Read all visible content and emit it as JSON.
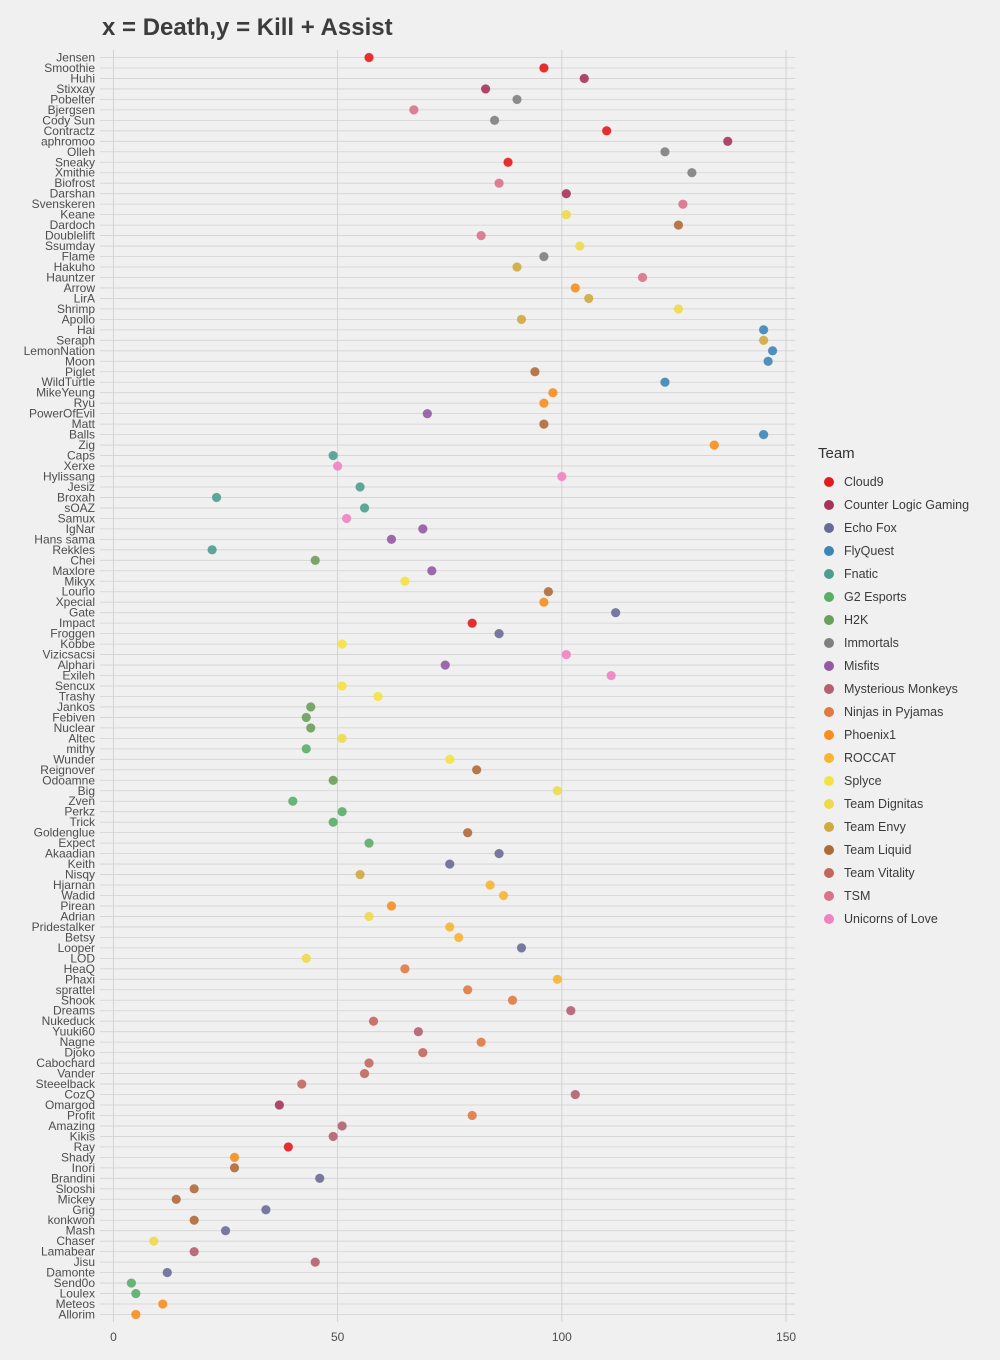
{
  "chart_data": {
    "type": "scatter",
    "title": "x = Death,y = Kill + Assist",
    "xlabel": "",
    "ylabel": "",
    "xlim": [
      -3,
      152
    ],
    "xticks": [
      0,
      50,
      100,
      150
    ],
    "grid": true,
    "legend_title": "Team",
    "legend_position": "right",
    "teams": [
      {
        "name": "Cloud9",
        "color": "#e41a1c"
      },
      {
        "name": "Counter Logic Gaming",
        "color": "#a6345a"
      },
      {
        "name": "Echo Fox",
        "color": "#6a6a98"
      },
      {
        "name": "FlyQuest",
        "color": "#3d85b8"
      },
      {
        "name": "Fnatic",
        "color": "#4c9e8e"
      },
      {
        "name": "G2 Esports",
        "color": "#5aad68"
      },
      {
        "name": "H2K",
        "color": "#6a9e5a"
      },
      {
        "name": "Immortals",
        "color": "#808080"
      },
      {
        "name": "Misfits",
        "color": "#9359a4"
      },
      {
        "name": "Mysterious Monkeys",
        "color": "#b46070"
      },
      {
        "name": "Ninjas in Pyjamas",
        "color": "#e07a42"
      },
      {
        "name": "Phoenix1",
        "color": "#f68e1e"
      },
      {
        "name": "ROCCAT",
        "color": "#f7b531"
      },
      {
        "name": "Splyce",
        "color": "#f5e140"
      },
      {
        "name": "Team Dignitas",
        "color": "#eed94a"
      },
      {
        "name": "Team Envy",
        "color": "#cfaa40"
      },
      {
        "name": "Team Liquid",
        "color": "#b06a38"
      },
      {
        "name": "Team Vitality",
        "color": "#c1685e"
      },
      {
        "name": "TSM",
        "color": "#d9728a"
      },
      {
        "name": "Unicorns of Love",
        "color": "#f082c2"
      }
    ],
    "points": [
      {
        "player": "Jensen",
        "x": 57,
        "team": "Cloud9"
      },
      {
        "player": "Smoothie",
        "x": 96,
        "team": "Cloud9"
      },
      {
        "player": "Huhi",
        "x": 105,
        "team": "Counter Logic Gaming"
      },
      {
        "player": "Stixxay",
        "x": 83,
        "team": "Counter Logic Gaming"
      },
      {
        "player": "Pobelter",
        "x": 90,
        "team": "Immortals"
      },
      {
        "player": "Bjergsen",
        "x": 67,
        "team": "TSM"
      },
      {
        "player": "Cody Sun",
        "x": 85,
        "team": "Immortals"
      },
      {
        "player": "Contractz",
        "x": 110,
        "team": "Cloud9"
      },
      {
        "player": "aphromoo",
        "x": 137,
        "team": "Counter Logic Gaming"
      },
      {
        "player": "Olleh",
        "x": 123,
        "team": "Immortals"
      },
      {
        "player": "Sneaky",
        "x": 88,
        "team": "Cloud9"
      },
      {
        "player": "Xmithie",
        "x": 129,
        "team": "Immortals"
      },
      {
        "player": "Biofrost",
        "x": 86,
        "team": "TSM"
      },
      {
        "player": "Darshan",
        "x": 101,
        "team": "Counter Logic Gaming"
      },
      {
        "player": "Svenskeren",
        "x": 127,
        "team": "TSM"
      },
      {
        "player": "Keane",
        "x": 101,
        "team": "Team Dignitas"
      },
      {
        "player": "Dardoch",
        "x": 126,
        "team": "Team Liquid"
      },
      {
        "player": "Doublelift",
        "x": 82,
        "team": "TSM"
      },
      {
        "player": "Ssumday",
        "x": 104,
        "team": "Team Dignitas"
      },
      {
        "player": "Flame",
        "x": 96,
        "team": "Immortals"
      },
      {
        "player": "Hakuho",
        "x": 90,
        "team": "Team Envy"
      },
      {
        "player": "Hauntzer",
        "x": 118,
        "team": "TSM"
      },
      {
        "player": "Arrow",
        "x": 103,
        "team": "Phoenix1"
      },
      {
        "player": "LirA",
        "x": 106,
        "team": "Team Envy"
      },
      {
        "player": "Shrimp",
        "x": 126,
        "team": "Team Dignitas"
      },
      {
        "player": "Apollo",
        "x": 91,
        "team": "Team Envy"
      },
      {
        "player": "Hai",
        "x": 145,
        "team": "FlyQuest"
      },
      {
        "player": "Seraph",
        "x": 145,
        "team": "Team Envy"
      },
      {
        "player": "LemonNation",
        "x": 147,
        "team": "FlyQuest"
      },
      {
        "player": "Moon",
        "x": 146,
        "team": "FlyQuest"
      },
      {
        "player": "Piglet",
        "x": 94,
        "team": "Team Liquid"
      },
      {
        "player": "WildTurtle",
        "x": 123,
        "team": "FlyQuest"
      },
      {
        "player": "MikeYeung",
        "x": 98,
        "team": "Phoenix1"
      },
      {
        "player": "Ryu",
        "x": 96,
        "team": "Phoenix1"
      },
      {
        "player": "PowerOfEvil",
        "x": 70,
        "team": "Misfits"
      },
      {
        "player": "Matt",
        "x": 96,
        "team": "Team Liquid"
      },
      {
        "player": "Balls",
        "x": 145,
        "team": "FlyQuest"
      },
      {
        "player": "Zig",
        "x": 134,
        "team": "Phoenix1"
      },
      {
        "player": "Caps",
        "x": 49,
        "team": "Fnatic"
      },
      {
        "player": "Xerxe",
        "x": 50,
        "team": "Unicorns of Love"
      },
      {
        "player": "Hylissang",
        "x": 100,
        "team": "Unicorns of Love"
      },
      {
        "player": "Jesiz",
        "x": 55,
        "team": "Fnatic"
      },
      {
        "player": "Broxah",
        "x": 23,
        "team": "Fnatic"
      },
      {
        "player": "sOAZ",
        "x": 56,
        "team": "Fnatic"
      },
      {
        "player": "Samux",
        "x": 52,
        "team": "Unicorns of Love"
      },
      {
        "player": "IgNar",
        "x": 69,
        "team": "Misfits"
      },
      {
        "player": "Hans sama",
        "x": 62,
        "team": "Misfits"
      },
      {
        "player": "Rekkles",
        "x": 22,
        "team": "Fnatic"
      },
      {
        "player": "Chei",
        "x": 45,
        "team": "H2K"
      },
      {
        "player": "Maxlore",
        "x": 71,
        "team": "Misfits"
      },
      {
        "player": "Mikyx",
        "x": 65,
        "team": "Splyce"
      },
      {
        "player": "Lourlo",
        "x": 97,
        "team": "Team Liquid"
      },
      {
        "player": "Xpecial",
        "x": 96,
        "team": "Phoenix1"
      },
      {
        "player": "Gate",
        "x": 112,
        "team": "Echo Fox"
      },
      {
        "player": "Impact",
        "x": 80,
        "team": "Cloud9"
      },
      {
        "player": "Froggen",
        "x": 86,
        "team": "Echo Fox"
      },
      {
        "player": "Kobbe",
        "x": 51,
        "team": "Splyce"
      },
      {
        "player": "Vizicsacsi",
        "x": 101,
        "team": "Unicorns of Love"
      },
      {
        "player": "Alphari",
        "x": 74,
        "team": "Misfits"
      },
      {
        "player": "Exileh",
        "x": 111,
        "team": "Unicorns of Love"
      },
      {
        "player": "Sencux",
        "x": 51,
        "team": "Splyce"
      },
      {
        "player": "Trashy",
        "x": 59,
        "team": "Splyce"
      },
      {
        "player": "Jankos",
        "x": 44,
        "team": "H2K"
      },
      {
        "player": "Febiven",
        "x": 43,
        "team": "H2K"
      },
      {
        "player": "Nuclear",
        "x": 44,
        "team": "H2K"
      },
      {
        "player": "Altec",
        "x": 51,
        "team": "Team Dignitas"
      },
      {
        "player": "mithy",
        "x": 43,
        "team": "G2 Esports"
      },
      {
        "player": "Wunder",
        "x": 75,
        "team": "Splyce"
      },
      {
        "player": "Reignover",
        "x": 81,
        "team": "Team Liquid"
      },
      {
        "player": "Odoamne",
        "x": 49,
        "team": "H2K"
      },
      {
        "player": "Big",
        "x": 99,
        "team": "Team Dignitas"
      },
      {
        "player": "Zven",
        "x": 40,
        "team": "G2 Esports"
      },
      {
        "player": "Perkz",
        "x": 51,
        "team": "G2 Esports"
      },
      {
        "player": "Trick",
        "x": 49,
        "team": "G2 Esports"
      },
      {
        "player": "Goldenglue",
        "x": 79,
        "team": "Team Liquid"
      },
      {
        "player": "Expect",
        "x": 57,
        "team": "G2 Esports"
      },
      {
        "player": "Akaadian",
        "x": 86,
        "team": "Echo Fox"
      },
      {
        "player": "Keith",
        "x": 75,
        "team": "Echo Fox"
      },
      {
        "player": "Nisqy",
        "x": 55,
        "team": "Team Envy"
      },
      {
        "player": "Hjarnan",
        "x": 84,
        "team": "ROCCAT"
      },
      {
        "player": "Wadid",
        "x": 87,
        "team": "ROCCAT"
      },
      {
        "player": "Pirean",
        "x": 62,
        "team": "Phoenix1"
      },
      {
        "player": "Adrian",
        "x": 57,
        "team": "Team Dignitas"
      },
      {
        "player": "Pridestalker",
        "x": 75,
        "team": "ROCCAT"
      },
      {
        "player": "Betsy",
        "x": 77,
        "team": "ROCCAT"
      },
      {
        "player": "Looper",
        "x": 91,
        "team": "Echo Fox"
      },
      {
        "player": "LOD",
        "x": 43,
        "team": "Team Dignitas"
      },
      {
        "player": "HeaQ",
        "x": 65,
        "team": "Ninjas in Pyjamas"
      },
      {
        "player": "Phaxi",
        "x": 99,
        "team": "ROCCAT"
      },
      {
        "player": "sprattel",
        "x": 79,
        "team": "Ninjas in Pyjamas"
      },
      {
        "player": "Shook",
        "x": 89,
        "team": "Ninjas in Pyjamas"
      },
      {
        "player": "Dreams",
        "x": 102,
        "team": "Mysterious Monkeys"
      },
      {
        "player": "Nukeduck",
        "x": 58,
        "team": "Team Vitality"
      },
      {
        "player": "Yuuki60",
        "x": 68,
        "team": "Mysterious Monkeys"
      },
      {
        "player": "Nagne",
        "x": 82,
        "team": "Ninjas in Pyjamas"
      },
      {
        "player": "Djoko",
        "x": 69,
        "team": "Team Vitality"
      },
      {
        "player": "Cabochard",
        "x": 57,
        "team": "Team Vitality"
      },
      {
        "player": "Vander",
        "x": 56,
        "team": "Team Vitality"
      },
      {
        "player": "Steeelback",
        "x": 42,
        "team": "Team Vitality"
      },
      {
        "player": "CozQ",
        "x": 103,
        "team": "Mysterious Monkeys"
      },
      {
        "player": "Omargod",
        "x": 37,
        "team": "Counter Logic Gaming"
      },
      {
        "player": "Profit",
        "x": 80,
        "team": "Ninjas in Pyjamas"
      },
      {
        "player": "Amazing",
        "x": 51,
        "team": "Mysterious Monkeys"
      },
      {
        "player": "Kikis",
        "x": 49,
        "team": "Mysterious Monkeys"
      },
      {
        "player": "Ray",
        "x": 39,
        "team": "Cloud9"
      },
      {
        "player": "Shady",
        "x": 27,
        "team": "Phoenix1"
      },
      {
        "player": "Inori",
        "x": 27,
        "team": "Team Liquid"
      },
      {
        "player": "Brandini",
        "x": 46,
        "team": "Echo Fox"
      },
      {
        "player": "Slooshi",
        "x": 18,
        "team": "Team Liquid"
      },
      {
        "player": "Mickey",
        "x": 14,
        "team": "Team Liquid"
      },
      {
        "player": "Grig",
        "x": 34,
        "team": "Echo Fox"
      },
      {
        "player": "konkwon",
        "x": 18,
        "team": "Team Liquid"
      },
      {
        "player": "Mash",
        "x": 25,
        "team": "Echo Fox"
      },
      {
        "player": "Chaser",
        "x": 9,
        "team": "Team Dignitas"
      },
      {
        "player": "Lamabear",
        "x": 18,
        "team": "Mysterious Monkeys"
      },
      {
        "player": "Jisu",
        "x": 45,
        "team": "Mysterious Monkeys"
      },
      {
        "player": "Damonte",
        "x": 12,
        "team": "Echo Fox"
      },
      {
        "player": "Send0o",
        "x": 4,
        "team": "G2 Esports"
      },
      {
        "player": "Loulex",
        "x": 5,
        "team": "G2 Esports"
      },
      {
        "player": "Meteos",
        "x": 11,
        "team": "Phoenix1"
      },
      {
        "player": "Allorim",
        "x": 5,
        "team": "Phoenix1"
      }
    ]
  }
}
